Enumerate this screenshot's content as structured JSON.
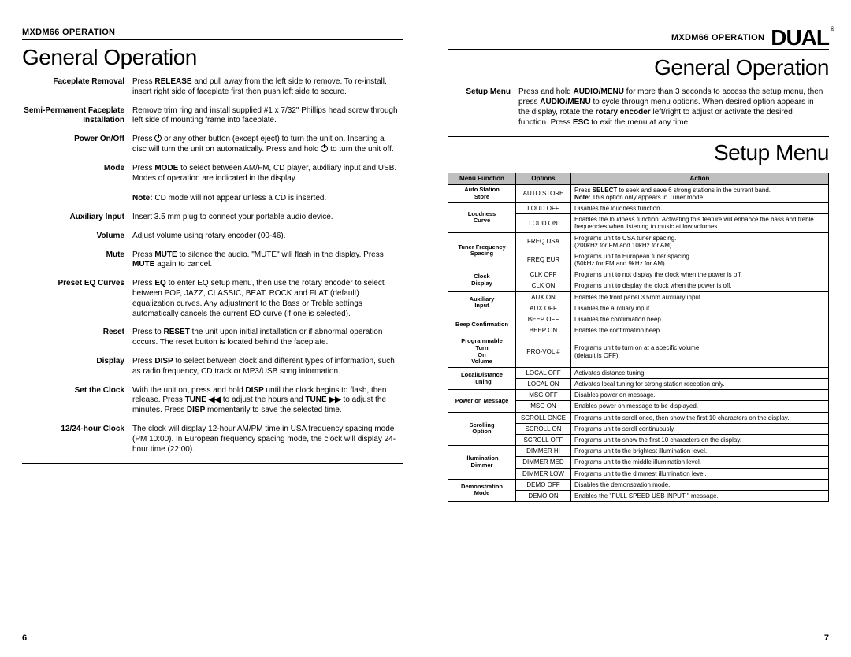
{
  "left": {
    "model_prefix": "MXDM66",
    "model_suffix": "OPERATION",
    "section_title": "General Operation",
    "page_num": "6",
    "items": [
      {
        "label": "Faceplate Removal",
        "html": "Press <b>RELEASE</b> and pull away from the left side to remove. To re-install, insert right side of faceplate first then push left side to secure."
      },
      {
        "label": "Semi-Permanent Faceplate Installation",
        "html": "Remove trim ring and install supplied #1 x 7/32\" Phillips head screw through left side of mounting frame into faceplate."
      },
      {
        "label": "Power On/Off",
        "html": "Press <span class='pwr-icon' data-name='power-icon' data-interactable='false'></span> or any other button (except eject) to turn the unit on. Inserting a disc will turn the unit on automatically. Press and hold <span class='pwr-icon' data-name='power-icon' data-interactable='false'></span> to turn the unit off."
      },
      {
        "label": "Mode",
        "html": "Press <b>MODE</b> to select between AM/FM, CD player, auxiliary input and USB. Modes of operation are indicated in the display.<br><br><b>Note:</b> CD mode will not appear unless a CD is inserted."
      },
      {
        "label": "Auxiliary Input",
        "html": "Insert 3.5 mm plug to connect your portable audio device."
      },
      {
        "label": "Volume",
        "html": "Adjust volume using rotary encoder (00-46)."
      },
      {
        "label": "Mute",
        "html": "Press <b>MUTE</b> to silence the audio. \"MUTE\" will flash in the display. Press <b>MUTE</b> again to cancel."
      },
      {
        "label": "Preset EQ Curves",
        "html": "Press <b>EQ</b> to enter EQ setup menu, then use the rotary encoder to select between POP, JAZZ, CLASSIC, BEAT, ROCK and FLAT (default) equalization curves. Any adjustment to the Bass or Treble settings automatically cancels the current EQ curve (if one is selected)."
      },
      {
        "label": "Reset",
        "html": "Press to <b>RESET</b> the unit upon initial installation or if abnormal operation occurs. The reset button is located behind the faceplate."
      },
      {
        "label": "Display",
        "html": "Press <b>DISP</b> to select between clock and different types of information, such as radio frequency, CD track or MP3/USB song information."
      },
      {
        "label": "Set the Clock",
        "html": "With the unit on, press and hold <b>DISP</b> until the clock begins to flash, then release. Press <b>TUNE <span class='arrow'>◀◀</span></b> to adjust the hours and <b>TUNE <span class='arrow'>▶▶</span></b> to adjust the minutes. Press <b>DISP</b> momentarily to save the selected time."
      },
      {
        "label": "12/24-hour Clock",
        "html": "The clock will display 12-hour AM/PM time in USA frequency spacing mode (PM 10:00). In European frequency spacing mode, the clock will display 24-hour time (22:00)."
      }
    ]
  },
  "right": {
    "model_prefix": "MXDM66",
    "model_suffix": "OPERATION",
    "logo_text": "DUAL",
    "section_title": "General Operation",
    "setup_title": "Setup Menu",
    "page_num": "7",
    "setup_label": "Setup Menu",
    "setup_html": "Press and hold <b>AUDIO/MENU</b> for more than 3 seconds to access the setup menu, then press <b>AUDIO/MENU</b> to cycle through menu options. When desired option appears in the display, rotate the <b>rotary encoder</b> left/right to adjust or activate the desired function. Press <b>ESC</b> to exit the menu at any time.",
    "table_headers": [
      "Menu Function",
      "Options",
      "Action"
    ],
    "rows": [
      {
        "mf": "Auto Station Store",
        "span": 1,
        "opt": "AUTO STORE",
        "act": "Press <b>SELECT</b> to seek and save 6 strong stations in the current band.<br><b>Note:</b> This option only appears in Tuner mode."
      },
      {
        "mf": "Loudness Curve",
        "span": 2,
        "opts": [
          "LOUD OFF",
          "LOUD ON"
        ],
        "acts": [
          "Disables the loudness function.",
          "Enables the loudness function. Activating this feature will enhance the bass and treble frequencies when listening to music at low volumes."
        ]
      },
      {
        "mf": "Tuner Frequency Spacing",
        "span": 2,
        "opts": [
          "FREQ USA",
          "FREQ EUR"
        ],
        "acts": [
          "Programs unit to USA tuner spacing.<br>(200kHz for FM and 10kHz for AM)",
          "Programs unit to European tuner spacing.<br>(50kHz for FM and 9kHz for AM)"
        ]
      },
      {
        "mf": "Clock Display",
        "span": 2,
        "opts": [
          "CLK OFF",
          "CLK ON"
        ],
        "acts": [
          "Programs unit to not display the clock when the power is off.",
          "Programs unit to display the clock when the power is off."
        ]
      },
      {
        "mf": "Auxiliary Input",
        "span": 2,
        "opts": [
          "AUX ON",
          "AUX OFF"
        ],
        "acts": [
          "Enables the front panel 3.5mm auxiliary input.",
          "Disables the auxiliary input."
        ]
      },
      {
        "mf": "Beep Confirmation",
        "span": 2,
        "opts": [
          "BEEP OFF",
          "BEEP ON"
        ],
        "acts": [
          "Disables the confirmation beep.",
          "Enables the confirmation beep."
        ]
      },
      {
        "mf": "Programmable Turn On Volume",
        "span": 1,
        "opt": "PRO-VOL #",
        "act": "Programs unit to turn on at a specific volume<br>(default is OFF)."
      },
      {
        "mf": "Local/Distance Tuning",
        "span": 2,
        "opts": [
          "LOCAL OFF",
          "LOCAL ON"
        ],
        "acts": [
          "Activates distance tuning.",
          "Activates local tuning for strong station reception only."
        ]
      },
      {
        "mf": "Power on Message",
        "span": 2,
        "opts": [
          "MSG OFF",
          "MSG ON"
        ],
        "acts": [
          "Disables power on message.",
          "Enables power on message to be displayed."
        ]
      },
      {
        "mf": "Scrolling Option",
        "span": 3,
        "opts": [
          "SCROLL ONCE",
          "SCROLL ON",
          "SCROLL OFF"
        ],
        "acts": [
          "Programs unit to scroll once, then show the first 10 characters on the display.",
          "Programs unit to scroll continuously.",
          "Programs unit to show the first 10 characters on the display."
        ]
      },
      {
        "mf": "Illumination Dimmer",
        "span": 3,
        "opts": [
          "DIMMER HI",
          "DIMMER MED",
          "DIMMER LOW"
        ],
        "acts": [
          "Programs unit to the brightest illumination level.",
          "Programs unit to the middle illumination level.",
          "Programs unit to the dimmest illumination level."
        ]
      },
      {
        "mf": "Demonstration Mode",
        "span": 2,
        "opts": [
          "DEMO OFF",
          "DEMO ON"
        ],
        "acts": [
          "Disables the demonstration mode.",
          "Enables the \"FULL SPEED USB INPUT \" message."
        ]
      }
    ]
  }
}
